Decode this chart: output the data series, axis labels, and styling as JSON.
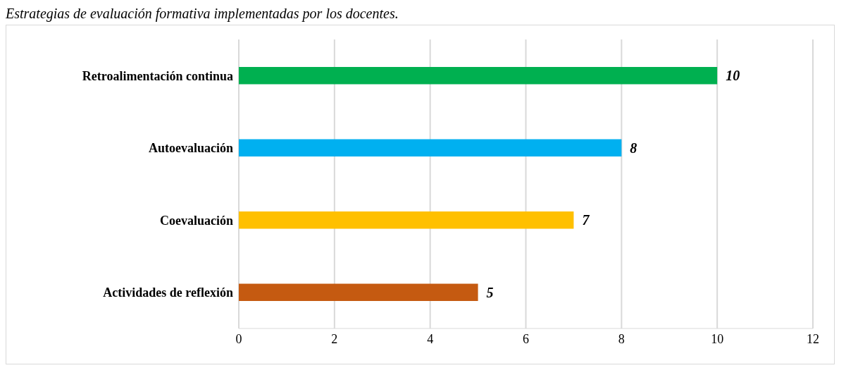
{
  "chart_data": {
    "type": "bar",
    "orientation": "horizontal",
    "title": "Estrategias de evaluación formativa implementadas por los docentes.",
    "categories": [
      "Retroalimentación continua",
      "Autoevaluación",
      "Coevaluación",
      "Actividades de reflexión"
    ],
    "values": [
      10,
      8,
      7,
      5
    ],
    "colors": [
      "#00b050",
      "#00b0f0",
      "#ffc000",
      "#c55a11"
    ],
    "xlim": [
      0,
      12
    ],
    "xticks": [
      0,
      2,
      4,
      6,
      8,
      10,
      12
    ],
    "grid": "x",
    "data_labels": true
  }
}
